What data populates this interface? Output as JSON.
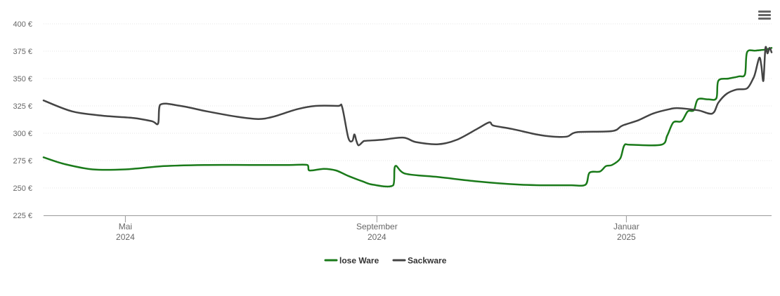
{
  "chart_data": {
    "type": "line",
    "y_ticks": [
      "225 €",
      "250 €",
      "275 €",
      "300 €",
      "325 €",
      "350 €",
      "375 €",
      "400 €"
    ],
    "ylim": [
      225,
      400
    ],
    "x_ticks": [
      {
        "month": "Mai",
        "year": "2024",
        "date": "2024-05-01"
      },
      {
        "month": "September",
        "year": "2024",
        "date": "2024-09-01"
      },
      {
        "month": "Januar",
        "year": "2025",
        "date": "2025-01-01"
      }
    ],
    "xlim": [
      "2024-03-22",
      "2025-03-13"
    ],
    "grid": true,
    "legend_position": "bottom-center",
    "series": [
      {
        "name": "lose Ware",
        "color": "#1a7a1a",
        "points": [
          [
            "2024-03-22",
            278
          ],
          [
            "2024-04-01",
            272
          ],
          [
            "2024-04-15",
            267
          ],
          [
            "2024-05-01",
            267
          ],
          [
            "2024-05-20",
            270
          ],
          [
            "2024-06-10",
            271
          ],
          [
            "2024-07-01",
            271
          ],
          [
            "2024-07-20",
            271
          ],
          [
            "2024-07-29",
            271
          ],
          [
            "2024-07-30",
            266
          ],
          [
            "2024-08-06",
            267.5
          ],
          [
            "2024-08-12",
            266
          ],
          [
            "2024-08-18",
            261
          ],
          [
            "2024-08-25",
            256
          ],
          [
            "2024-08-30",
            253
          ],
          [
            "2024-09-09",
            252.5
          ],
          [
            "2024-09-10",
            270
          ],
          [
            "2024-09-15",
            263
          ],
          [
            "2024-10-01",
            260
          ],
          [
            "2024-10-20",
            256
          ],
          [
            "2024-11-10",
            253
          ],
          [
            "2024-11-25",
            252.5
          ],
          [
            "2024-12-05",
            252.5
          ],
          [
            "2024-12-12",
            253
          ],
          [
            "2024-12-14",
            264
          ],
          [
            "2024-12-19",
            265
          ],
          [
            "2024-12-22",
            270
          ],
          [
            "2024-12-25",
            271
          ],
          [
            "2024-12-29",
            277
          ],
          [
            "2024-12-31",
            289
          ],
          [
            "2025-01-03",
            289.5
          ],
          [
            "2025-01-18",
            289.5
          ],
          [
            "2025-01-21",
            298
          ],
          [
            "2025-01-24",
            310
          ],
          [
            "2025-01-28",
            311
          ],
          [
            "2025-01-31",
            320
          ],
          [
            "2025-02-03",
            321
          ],
          [
            "2025-02-05",
            331
          ],
          [
            "2025-02-10",
            331
          ],
          [
            "2025-02-14",
            332
          ],
          [
            "2025-02-15",
            348
          ],
          [
            "2025-02-20",
            350
          ],
          [
            "2025-02-25",
            352
          ],
          [
            "2025-02-28",
            354
          ],
          [
            "2025-03-01",
            374
          ],
          [
            "2025-03-05",
            375.5
          ],
          [
            "2025-03-10",
            376.5
          ],
          [
            "2025-03-13",
            378
          ]
        ]
      },
      {
        "name": "Sackware",
        "color": "#444444",
        "points": [
          [
            "2024-03-22",
            330
          ],
          [
            "2024-04-05",
            320
          ],
          [
            "2024-04-20",
            316
          ],
          [
            "2024-05-05",
            314
          ],
          [
            "2024-05-14",
            311
          ],
          [
            "2024-05-17",
            309
          ],
          [
            "2024-05-18",
            326
          ],
          [
            "2024-05-28",
            325
          ],
          [
            "2024-06-10",
            320
          ],
          [
            "2024-06-25",
            315
          ],
          [
            "2024-07-05",
            313
          ],
          [
            "2024-07-12",
            315
          ],
          [
            "2024-07-24",
            322
          ],
          [
            "2024-08-02",
            325
          ],
          [
            "2024-08-13",
            325
          ],
          [
            "2024-08-15",
            324
          ],
          [
            "2024-08-18",
            296
          ],
          [
            "2024-08-20",
            293
          ],
          [
            "2024-08-21",
            299
          ],
          [
            "2024-08-22",
            293
          ],
          [
            "2024-08-23",
            289
          ],
          [
            "2024-08-25",
            292
          ],
          [
            "2024-08-26",
            293
          ],
          [
            "2024-09-03",
            294
          ],
          [
            "2024-09-14",
            296
          ],
          [
            "2024-09-20",
            292
          ],
          [
            "2024-10-01",
            290
          ],
          [
            "2024-10-10",
            294
          ],
          [
            "2024-10-20",
            304
          ],
          [
            "2024-10-26",
            310
          ],
          [
            "2024-10-28",
            307
          ],
          [
            "2024-11-06",
            304
          ],
          [
            "2024-11-18",
            299
          ],
          [
            "2024-11-26",
            297
          ],
          [
            "2024-12-03",
            297
          ],
          [
            "2024-12-08",
            301
          ],
          [
            "2024-12-25",
            302
          ],
          [
            "2024-12-30",
            307
          ],
          [
            "2025-01-07",
            312
          ],
          [
            "2025-01-14",
            318
          ],
          [
            "2025-01-22",
            322
          ],
          [
            "2025-01-26",
            323
          ],
          [
            "2025-02-05",
            321
          ],
          [
            "2025-02-12",
            318
          ],
          [
            "2025-02-15",
            328
          ],
          [
            "2025-02-19",
            336
          ],
          [
            "2025-02-24",
            340
          ],
          [
            "2025-03-01",
            341
          ],
          [
            "2025-03-04",
            350
          ],
          [
            "2025-03-05",
            355
          ],
          [
            "2025-03-07",
            369
          ],
          [
            "2025-03-08",
            362
          ],
          [
            "2025-03-09",
            348
          ],
          [
            "2025-03-10",
            378
          ],
          [
            "2025-03-11",
            373
          ],
          [
            "2025-03-12",
            378
          ],
          [
            "2025-03-13",
            374
          ]
        ]
      }
    ]
  },
  "menu": {
    "icon": "hamburger-menu-icon"
  }
}
